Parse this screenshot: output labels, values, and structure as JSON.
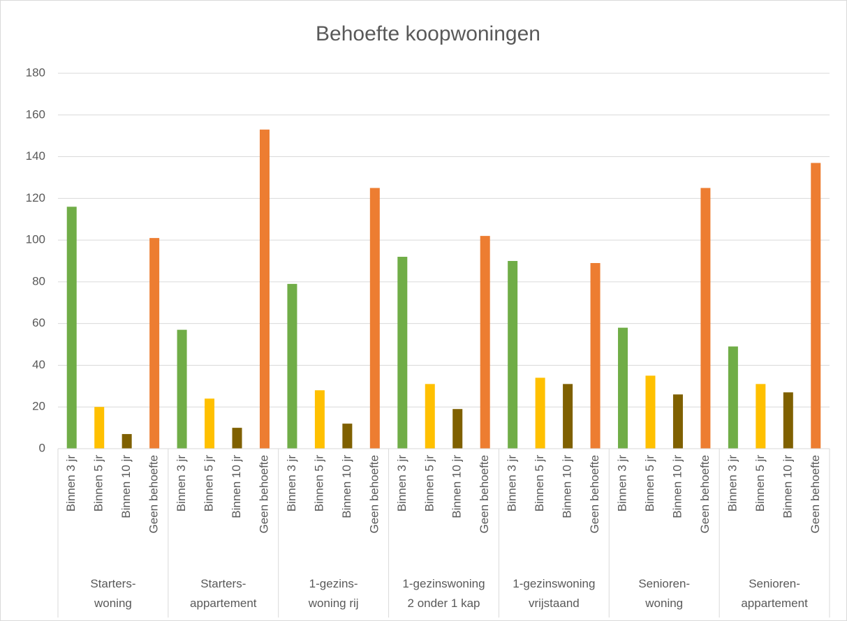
{
  "chart_data": {
    "type": "bar",
    "title": "Behoefte koopwoningen",
    "categories": [
      [
        "Starters-",
        "woning"
      ],
      [
        "Starters-",
        "appartement"
      ],
      [
        "1-gezins-",
        "woning rij"
      ],
      [
        "1-gezinswoning",
        "2 onder 1 kap"
      ],
      [
        "1-gezinswoning",
        "vrijstaand"
      ],
      [
        "Senioren-",
        "woning"
      ],
      [
        "Senioren-",
        "appartement"
      ]
    ],
    "series": [
      {
        "name": "Binnen 3 jr",
        "color": "#70ad47",
        "values": [
          116,
          57,
          79,
          92,
          90,
          58,
          49
        ]
      },
      {
        "name": "Binnen 5 jr",
        "color": "#ffc000",
        "values": [
          20,
          24,
          28,
          31,
          34,
          35,
          31
        ]
      },
      {
        "name": "Binnen 10 jr",
        "color": "#7f6000",
        "values": [
          7,
          10,
          12,
          19,
          31,
          26,
          27
        ]
      },
      {
        "name": "Geen behoefte",
        "color": "#ed7d31",
        "values": [
          101,
          153,
          125,
          102,
          89,
          125,
          137
        ]
      }
    ],
    "ylim": [
      0,
      180
    ],
    "yticks": [
      0,
      20,
      40,
      60,
      80,
      100,
      120,
      140,
      160,
      180
    ],
    "grid": true
  }
}
